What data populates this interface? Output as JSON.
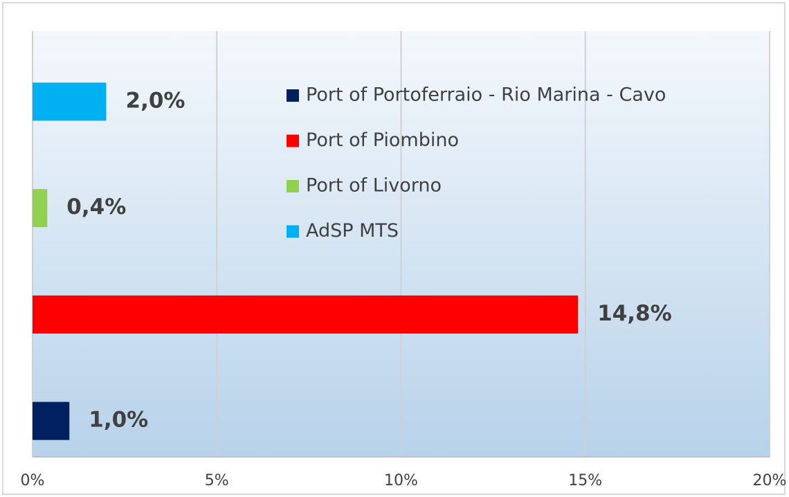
{
  "chart_data": {
    "type": "bar",
    "orientation": "horizontal",
    "categories": [
      null
    ],
    "series": [
      {
        "name": "Port of Portoferraio - Rio Marina - Cavo",
        "color": "#002060",
        "values": [
          1.0
        ],
        "value_labels": [
          "1,0%"
        ]
      },
      {
        "name": "Port of Piombino",
        "color": "#ff0000",
        "values": [
          14.8
        ],
        "value_labels": [
          "14,8%"
        ]
      },
      {
        "name": "Port of Livorno",
        "color": "#92d050",
        "values": [
          0.4
        ],
        "value_labels": [
          "0,4%"
        ]
      },
      {
        "name": "AdSP MTS",
        "color": "#00b0f0",
        "values": [
          2.0
        ],
        "value_labels": [
          "2,0%"
        ]
      }
    ],
    "xlim": [
      0,
      20
    ],
    "xticks": [
      {
        "value": 0,
        "label": "0%"
      },
      {
        "value": 5,
        "label": "5%"
      },
      {
        "value": 10,
        "label": "10%"
      },
      {
        "value": 15,
        "label": "15%"
      },
      {
        "value": 20,
        "label": "20%"
      }
    ],
    "grid": true
  }
}
